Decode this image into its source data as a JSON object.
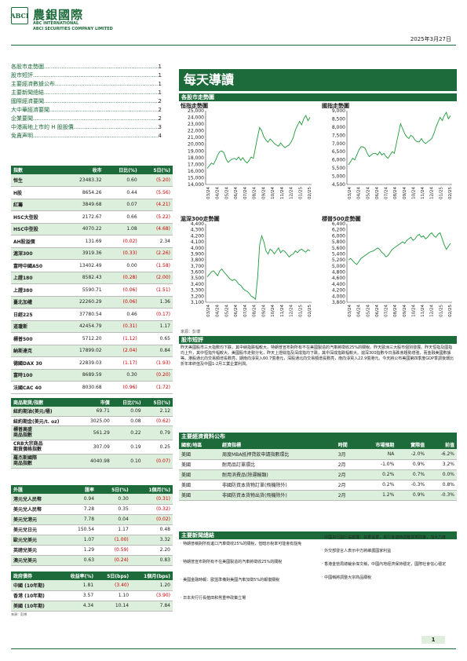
{
  "header": {
    "logo_text": "ABCI",
    "brand_cn": "農銀國際",
    "brand_en_1": "ABC INTERNATIONAL",
    "brand_en_2": "ABCI SECURITIES COMPANY LIMITED",
    "date": "2025年3月27日"
  },
  "toc": [
    {
      "title": "各股市走勢圖",
      "page": "1"
    },
    {
      "title": "股市短評",
      "page": "1"
    },
    {
      "title": "主要經濟數據公布",
      "page": "1"
    },
    {
      "title": "主要新聞總結",
      "page": "1"
    },
    {
      "title": "國際經濟要聞",
      "page": "2"
    },
    {
      "title": "大中華經濟要聞",
      "page": "2"
    },
    {
      "title": "企業要聞",
      "page": "2"
    },
    {
      "title": "中港兩地上市的 H 股股價",
      "page": "3"
    },
    {
      "title": "免責声明",
      "page": "4"
    }
  ],
  "banner": "每天導讀",
  "charts_section_title": "各股市走勢圖",
  "charts": [
    {
      "title": "恒指走勢圖",
      "yticks": [
        "25,000",
        "24,000",
        "23,000",
        "22,000",
        "21,000",
        "20,000",
        "19,000",
        "18,000",
        "17,000",
        "16,000",
        "15,000",
        "14,000"
      ],
      "xticks": [
        "03/24",
        "04/24",
        "05/24",
        "06/24",
        "07/24",
        "08/24",
        "09/24",
        "10/24",
        "11/24",
        "12/24",
        "01/25",
        "02/25"
      ],
      "chart_data": {
        "type": "line",
        "ylim": [
          14000,
          25000
        ],
        "values": [
          16400,
          16800,
          17200,
          17000,
          17600,
          18400,
          18900,
          19000,
          18700,
          17800,
          17300,
          17600,
          17800,
          17900,
          17700,
          18100,
          17600,
          18000,
          17500,
          17200,
          17600,
          18100,
          17900,
          19500,
          21100,
          22500,
          22000,
          21100,
          20600,
          20300,
          20800,
          20500,
          20100,
          19900,
          19700,
          20200,
          19800,
          19500,
          19700,
          19900,
          20300,
          21000,
          22100,
          22800,
          23400,
          22900,
          23800,
          24300,
          23500,
          24000
        ]
      }
    },
    {
      "title": "國指走勢圖",
      "yticks": [
        "9,000",
        "8,500",
        "8,000",
        "7,500",
        "7,000",
        "6,500",
        "6,000",
        "5,500",
        "5,000",
        "4,500"
      ],
      "xticks": [
        "03/24",
        "04/24",
        "05/24",
        "06/24",
        "07/24",
        "08/24",
        "09/24",
        "10/24",
        "11/24",
        "12/24",
        "01/25",
        "02/25"
      ],
      "chart_data": {
        "type": "line",
        "ylim": [
          4500,
          9000
        ],
        "values": [
          5700,
          5900,
          6100,
          6000,
          6300,
          6600,
          6800,
          6800,
          6700,
          6400,
          6200,
          6300,
          6400,
          6400,
          6300,
          6500,
          6300,
          6400,
          6200,
          6100,
          6300,
          6500,
          6400,
          7000,
          7600,
          8200,
          7900,
          7600,
          7400,
          7300,
          7500,
          7400,
          7200,
          7100,
          7100,
          7300,
          7100,
          7000,
          7100,
          7200,
          7300,
          7600,
          8000,
          8300,
          8600,
          8400,
          8700,
          8900,
          8500,
          8700
        ]
      }
    },
    {
      "title": "滬深300走勢圖",
      "yticks": [
        "4,400",
        "4,300",
        "4,200",
        "4,100",
        "4,000",
        "3,900",
        "3,800",
        "3,700",
        "3,600",
        "3,500",
        "3,400",
        "3,300",
        "3,200",
        "3,100"
      ],
      "xticks": [
        "03/24",
        "04/24",
        "05/24",
        "06/24",
        "07/24",
        "08/24",
        "09/24",
        "10/24",
        "11/24",
        "12/24",
        "01/25",
        "02/25"
      ],
      "chart_data": {
        "type": "line",
        "ylim": [
          3100,
          4400
        ],
        "values": [
          3520,
          3560,
          3600,
          3620,
          3580,
          3540,
          3620,
          3650,
          3600,
          3560,
          3520,
          3480,
          3460,
          3480,
          3450,
          3400,
          3380,
          3330,
          3300,
          3280,
          3250,
          3200,
          3180,
          3150,
          3500,
          4050,
          4200,
          4100,
          3950,
          3900,
          3980,
          3950,
          3900,
          3950,
          4000,
          3920,
          3960,
          3940,
          3900,
          3850,
          3880,
          3900,
          3950,
          3920,
          3960,
          3980,
          3950,
          3930,
          3970,
          3950
        ]
      }
    },
    {
      "title": "標普500走勢圖",
      "yticks": [
        "6,400",
        "6,200",
        "6,000",
        "5,800",
        "5,600",
        "5,400",
        "5,200",
        "5,000",
        "4,800",
        "4,600",
        "4,400",
        "4,200",
        "4,000",
        "3,800"
      ],
      "xticks": [
        "03/24",
        "04/24",
        "05/24",
        "06/24",
        "07/24",
        "08/24",
        "09/24",
        "10/24",
        "11/24",
        "12/24",
        "01/25",
        "02/25"
      ],
      "chart_data": {
        "type": "line",
        "ylim": [
          3800,
          6400
        ],
        "values": [
          5200,
          5250,
          5180,
          5100,
          5050,
          5150,
          5250,
          5300,
          5350,
          5400,
          5450,
          5480,
          5500,
          5550,
          5600,
          5550,
          5450,
          5400,
          5300,
          5350,
          5450,
          5550,
          5600,
          5650,
          5700,
          5750,
          5800,
          5750,
          5850,
          5900,
          5950,
          5850,
          5900,
          6000,
          6050,
          5950,
          6000,
          5900,
          5950,
          6050,
          6100,
          6000,
          5950,
          6050,
          6100,
          5900,
          5700,
          5550,
          5650,
          5750
        ]
      }
    }
  ],
  "chart_source": "來源：彭博",
  "comment_title": "股市短評",
  "comment_text": "昨天美國股市三大指數均下跌，其中納指跌幅較大。特朗普宣布對所有不在美國製造的汽車將徵收25%的關稅。昨天歐洲三大股市個別發展。昨天恒指及國指均上升，其中恒指升幅較大。美國股市走勢分化，昨天上證綜指及深成指均下跌，其中深成指跌幅較大。滬深300指數今日漲跌會趨勢增強，而金融美國數據等。港股通北向交易額增長數亮，期南向淨買入60.7億港元，深股通北向交易額增長數亮，南向淨買入22.9億港元。今天將公布美國第四季度GDP季調後環比折年率終值及中國1-2月工業企業利潤。",
  "index_table": {
    "headers": [
      "指數",
      "收市",
      "日比(%)",
      "5日(%)"
    ],
    "rows": [
      [
        "恒生",
        "23483.32",
        "0.60",
        "(5.20)"
      ],
      [
        "H股",
        "8654.26",
        "0.44",
        "(5.56)"
      ],
      [
        "紅籌",
        "3849.68",
        "0.07",
        "(4.21)"
      ],
      [
        "HSC大型股",
        "2172.67",
        "0.66",
        "(5.22)"
      ],
      [
        "HSC中型股",
        "4070.22",
        "1.08",
        "(4.68)"
      ],
      [
        "AH股溢價",
        "131.69",
        "(0.02)",
        "2.34"
      ],
      [
        "滬深300",
        "3919.36",
        "(0.33)",
        "(2.26)"
      ],
      [
        "富時中國A50",
        "13402.49",
        "0.00",
        "(1.58)"
      ],
      [
        "上證180",
        "8582.43",
        "(0.28)",
        "(2.00)"
      ],
      [
        "上證380",
        "5590.71",
        "(0.06)",
        "(1.51)"
      ],
      [
        "臺北加權",
        "22260.29",
        "(0.06)",
        "1.36"
      ],
      [
        "日經225",
        "37780.54",
        "0.46",
        "(0.17)"
      ],
      [
        "道瓊斯",
        "42454.79",
        "(0.31)",
        "1.17"
      ],
      [
        "標普500",
        "5712.20",
        "(1.12)",
        "0.65"
      ],
      [
        "納斯達克",
        "17899.02",
        "(2.04)",
        "0.84"
      ],
      [
        "德國DAX 30",
        "22839.03",
        "(1.17)",
        "(1.93)"
      ],
      [
        "富時100",
        "8689.59",
        "0.30",
        "(0.20)"
      ],
      [
        "法國CAC 40",
        "8030.68",
        "(0.96)",
        "(1.72)"
      ]
    ]
  },
  "commodity_table": {
    "headers": [
      "商品期貨/指數",
      "市價",
      "日比(%)",
      "5日(%)"
    ],
    "rows": [
      [
        "紐約期油(美元/桶)",
        "69.71",
        "0.09",
        "2.12"
      ],
      [
        "紐約期金(美元/t. oz)",
        "3025.00",
        "0.08",
        "(0.62)"
      ],
      [
        "標普高盛\n商品指數",
        "561.29",
        "0.22",
        "0.79"
      ],
      [
        "CRB大宗商品\n期貨價格指數",
        "307.09",
        "0.19",
        "0.25"
      ],
      [
        "羅杰斯國際\n商品指數",
        "4040.98",
        "0.10",
        "(0.07)"
      ]
    ]
  },
  "fx_table": {
    "headers": [
      "外匯",
      "匯率",
      "5日(%)",
      "1個月(%)"
    ],
    "rows": [
      [
        "港元兌人民幣",
        "0.94",
        "0.30",
        "(0.31)"
      ],
      [
        "美元兌人民幣",
        "7.28",
        "0.35",
        "(0.32)"
      ],
      [
        "美元兌港元",
        "7.78",
        "0.04",
        "(0.02)"
      ],
      [
        "美元兌日元",
        "150.54",
        "1.17",
        "0.48"
      ],
      [
        "歐元兌美元",
        "1.07",
        "(1.00)",
        "3.32"
      ],
      [
        "英磅兌美元",
        "1.29",
        "(0.59)",
        "2.20"
      ],
      [
        "澳元兌美元",
        "0.63",
        "(0.24)",
        "0.83"
      ]
    ]
  },
  "bond_table": {
    "headers": [
      "政府債券",
      "收益率(%)",
      "5日(bps)",
      "1個月(bps)"
    ],
    "rows": [
      [
        "中國 (10年期)",
        "1.81",
        "(3.40)",
        "1.20"
      ],
      [
        "香港 (10年期)",
        "3.57",
        "1.10",
        "(3.90)"
      ],
      [
        "美國 (10年期)",
        "4.34",
        "10.14",
        "7.84"
      ]
    ]
  },
  "left_source": "來源：彭博",
  "econ_title": "主要經濟資料公布",
  "econ_table": {
    "headers": [
      "國家/地區",
      "經濟指標",
      "時間",
      "市場預期",
      "實際值",
      "前值"
    ],
    "rows": [
      [
        "美國",
        "周度MBA抵押貸款申請指數環比",
        "3月",
        "NA",
        "-2.0%",
        "-6.2%"
      ],
      [
        "美國",
        "耐用品訂單環比",
        "2月",
        "-1.0%",
        "0.9%",
        "3.2%"
      ],
      [
        "美國",
        "耐用消費品(除運輸類)",
        "2月",
        "0.2%",
        "0.7%",
        "0.0%"
      ],
      [
        "美國",
        "非國防資本貨物訂單(飛機除外)",
        "2月",
        "0.2%",
        "-0.3%",
        "0.8%"
      ],
      [
        "美國",
        "非國防資本貨物出貨(飛機除外)",
        "2月",
        "1.2%",
        "0.9%",
        "-0.3%"
      ]
    ]
  },
  "news_title": "主要新聞總結",
  "news_left": [
    "‧ 特朗普稱對所有進口汽車徵收25%的關稅，但暗示稅率可能會有豁免",
    "‧ 特朗普宣布對所有不在美國製造的汽車將徵收25%的關稅",
    "‧ 美國金融時報：歐盟準備對美國汽車加徵5%的報復關稅",
    "‧ 日本央行行長植田和男重申政策立場"
  ],
  "news_right": [
    "‧ 中國央行副行長鄒瀾：如果需要，央行會適時調整貨幣政策，加大力度",
    "‧ 外交部發言人表示中方將維護國家利益",
    "‧ 香港金管局總裁余偉文稱，中國內地經濟保持穩定，國際社會信心穩定",
    "‧ 中國稱將調整大宗商品關稅"
  ],
  "page_number": "1"
}
